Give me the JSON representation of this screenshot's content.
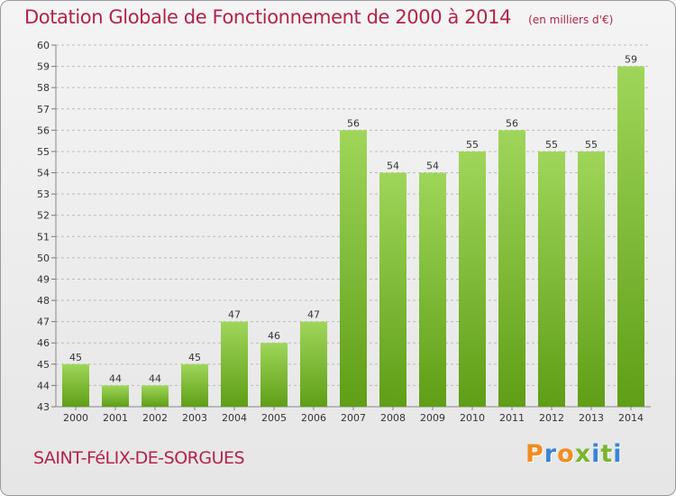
{
  "title": "Dotation Globale de Fonctionnement de 2000 à 2014",
  "subtitle": "(en milliers d'€)",
  "town": "SAINT-FéLIX-DE-SORGUES",
  "logo": {
    "text": "Proxiti",
    "letter_colors": [
      "#f28c1e",
      "#3a85d6",
      "#f28c1e",
      "#7ab62c",
      "#3a85d6",
      "#7ab62c",
      "#3a85d6"
    ]
  },
  "colors": {
    "bar_light": "#9fd65a",
    "bar_dark": "#5f9e16",
    "grid": "#bcbcbc",
    "axis_text": "#333333",
    "title": "#b2244a"
  },
  "chart_data": {
    "type": "bar",
    "title": "Dotation Globale de Fonctionnement de 2000 à 2014",
    "subtitle": "(en milliers d'€)",
    "categories": [
      "2000",
      "2001",
      "2002",
      "2003",
      "2004",
      "2005",
      "2006",
      "2007",
      "2008",
      "2009",
      "2010",
      "2011",
      "2012",
      "2013",
      "2014"
    ],
    "values": [
      45,
      44,
      44,
      45,
      47,
      46,
      47,
      56,
      54,
      54,
      55,
      56,
      55,
      55,
      59
    ],
    "ylim": [
      43,
      60
    ],
    "ytick_step": 1,
    "grid": true,
    "data_labels": true,
    "xlabel": "",
    "ylabel": ""
  }
}
